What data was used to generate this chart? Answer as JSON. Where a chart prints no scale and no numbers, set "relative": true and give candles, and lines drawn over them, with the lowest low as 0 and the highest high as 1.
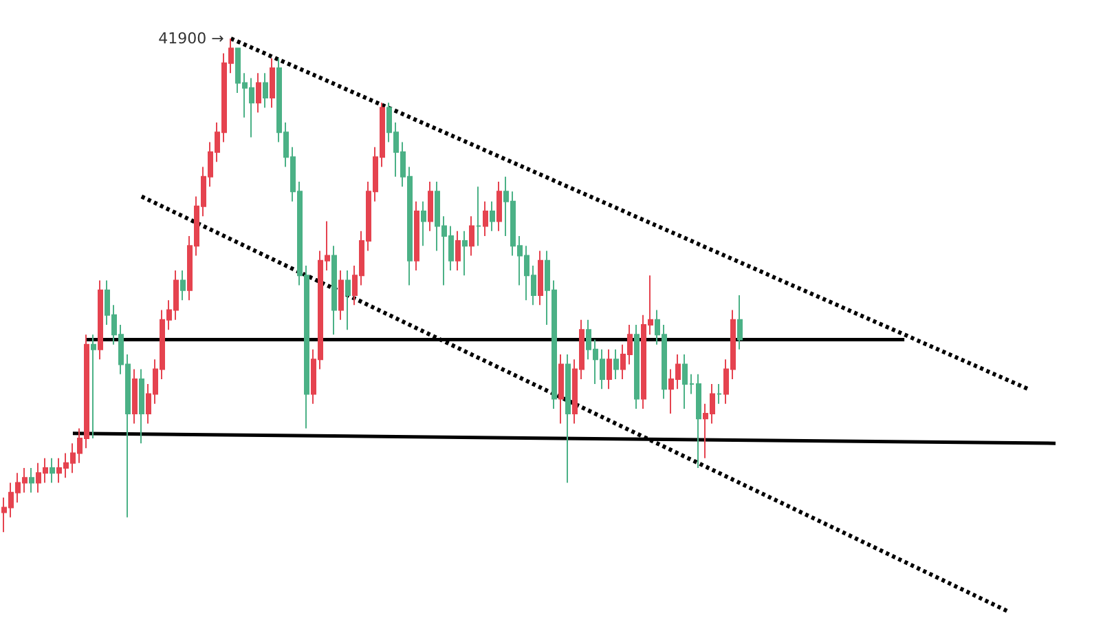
{
  "chart_data": {
    "type": "candlestick",
    "relative": true,
    "categories": [
      null,
      null,
      null,
      null,
      null,
      null,
      null,
      null,
      null,
      null,
      null,
      null,
      null,
      null,
      null,
      null,
      null,
      null,
      null,
      null,
      null,
      null,
      null,
      null,
      null,
      null,
      null,
      null,
      null,
      null,
      null,
      null,
      null,
      null,
      null,
      null,
      null,
      null,
      null,
      null,
      null,
      null,
      null,
      null,
      null,
      null,
      null,
      null,
      null,
      null,
      null,
      null,
      null,
      null,
      null,
      null,
      null,
      null,
      null,
      null,
      null,
      null,
      null,
      null,
      null,
      null,
      null,
      null,
      null,
      null,
      null,
      null,
      null,
      null,
      null,
      null,
      null,
      null,
      null,
      null,
      null,
      null,
      null,
      null,
      null,
      null,
      null,
      null,
      null,
      null,
      null,
      null,
      null,
      null,
      null,
      null,
      null,
      null,
      null,
      null,
      null,
      null,
      null,
      null,
      null,
      null,
      null,
      null,
      null,
      null,
      null,
      null,
      null,
      null,
      null,
      null,
      null,
      null,
      null,
      null,
      null,
      null,
      null,
      null,
      null,
      null,
      null,
      null,
      null,
      null,
      null,
      null,
      null,
      null,
      null,
      null,
      null,
      null,
      null,
      null,
      null,
      null,
      null,
      null,
      null,
      null,
      null,
      null,
      null,
      null,
      null,
      null,
      null,
      null
    ],
    "ohlc": [
      [
        0.04,
        0.07,
        0,
        0.05
      ],
      [
        0.05,
        0.1,
        0.03,
        0.08
      ],
      [
        0.08,
        0.12,
        0.06,
        0.1
      ],
      [
        0.1,
        0.13,
        0.08,
        0.11
      ],
      [
        0.11,
        0.13,
        0.08,
        0.1
      ],
      [
        0.1,
        0.14,
        0.08,
        0.12
      ],
      [
        0.12,
        0.15,
        0.1,
        0.13
      ],
      [
        0.13,
        0.15,
        0.1,
        0.12
      ],
      [
        0.12,
        0.15,
        0.1,
        0.13
      ],
      [
        0.13,
        0.16,
        0.11,
        0.14
      ],
      [
        0.14,
        0.18,
        0.12,
        0.16
      ],
      [
        0.16,
        0.21,
        0.14,
        0.19
      ],
      [
        0.19,
        0.4,
        0.17,
        0.38
      ],
      [
        0.38,
        0.4,
        0.19,
        0.37
      ],
      [
        0.37,
        0.51,
        0.35,
        0.49
      ],
      [
        0.49,
        0.51,
        0.42,
        0.44
      ],
      [
        0.44,
        0.46,
        0.38,
        0.4
      ],
      [
        0.4,
        0.42,
        0.32,
        0.34
      ],
      [
        0.34,
        0.36,
        0.03,
        0.24
      ],
      [
        0.24,
        0.33,
        0.22,
        0.31
      ],
      [
        0.31,
        0.33,
        0.18,
        0.24
      ],
      [
        0.24,
        0.3,
        0.22,
        0.28
      ],
      [
        0.28,
        0.35,
        0.26,
        0.33
      ],
      [
        0.33,
        0.45,
        0.31,
        0.43
      ],
      [
        0.43,
        0.47,
        0.41,
        0.45
      ],
      [
        0.45,
        0.53,
        0.43,
        0.51
      ],
      [
        0.51,
        0.53,
        0.47,
        0.49
      ],
      [
        0.49,
        0.6,
        0.47,
        0.58
      ],
      [
        0.58,
        0.68,
        0.56,
        0.66
      ],
      [
        0.66,
        0.74,
        0.64,
        0.72
      ],
      [
        0.72,
        0.79,
        0.7,
        0.77
      ],
      [
        0.77,
        0.83,
        0.75,
        0.81
      ],
      [
        0.81,
        0.97,
        0.79,
        0.95
      ],
      [
        0.95,
        1,
        0.93,
        0.98
      ],
      [
        0.98,
        0.98,
        0.89,
        0.91
      ],
      [
        0.91,
        0.93,
        0.84,
        0.9
      ],
      [
        0.9,
        0.92,
        0.8,
        0.87
      ],
      [
        0.87,
        0.93,
        0.85,
        0.91
      ],
      [
        0.91,
        0.93,
        0.86,
        0.88
      ],
      [
        0.88,
        0.96,
        0.86,
        0.94
      ],
      [
        0.94,
        0.96,
        0.79,
        0.81
      ],
      [
        0.81,
        0.83,
        0.74,
        0.76
      ],
      [
        0.76,
        0.78,
        0.67,
        0.69
      ],
      [
        0.69,
        0.71,
        0.5,
        0.52
      ],
      [
        0.52,
        0.54,
        0.21,
        0.28
      ],
      [
        0.28,
        0.37,
        0.26,
        0.35
      ],
      [
        0.35,
        0.57,
        0.33,
        0.55
      ],
      [
        0.55,
        0.63,
        0.53,
        0.56
      ],
      [
        0.56,
        0.58,
        0.4,
        0.45
      ],
      [
        0.45,
        0.53,
        0.43,
        0.51
      ],
      [
        0.51,
        0.53,
        0.41,
        0.48
      ],
      [
        0.48,
        0.54,
        0.46,
        0.52
      ],
      [
        0.52,
        0.61,
        0.5,
        0.59
      ],
      [
        0.59,
        0.71,
        0.57,
        0.69
      ],
      [
        0.69,
        0.78,
        0.67,
        0.76
      ],
      [
        0.76,
        0.87,
        0.74,
        0.86
      ],
      [
        0.86,
        0.87,
        0.79,
        0.81
      ],
      [
        0.81,
        0.83,
        0.72,
        0.77
      ],
      [
        0.77,
        0.79,
        0.7,
        0.72
      ],
      [
        0.72,
        0.74,
        0.5,
        0.55
      ],
      [
        0.55,
        0.67,
        0.53,
        0.65
      ],
      [
        0.65,
        0.67,
        0.58,
        0.63
      ],
      [
        0.63,
        0.71,
        0.61,
        0.69
      ],
      [
        0.69,
        0.71,
        0.57,
        0.62
      ],
      [
        0.62,
        0.64,
        0.5,
        0.6
      ],
      [
        0.6,
        0.62,
        0.53,
        0.55
      ],
      [
        0.55,
        0.61,
        0.53,
        0.59
      ],
      [
        0.59,
        0.61,
        0.52,
        0.58
      ],
      [
        0.58,
        0.64,
        0.56,
        0.62
      ],
      [
        0.62,
        0.7,
        0.58,
        0.62
      ],
      [
        0.62,
        0.67,
        0.6,
        0.65
      ],
      [
        0.65,
        0.67,
        0.61,
        0.63
      ],
      [
        0.63,
        0.71,
        0.61,
        0.69
      ],
      [
        0.69,
        0.72,
        0.6,
        0.67
      ],
      [
        0.67,
        0.69,
        0.56,
        0.58
      ],
      [
        0.58,
        0.6,
        0.5,
        0.56
      ],
      [
        0.56,
        0.58,
        0.47,
        0.52
      ],
      [
        0.52,
        0.54,
        0.46,
        0.48
      ],
      [
        0.48,
        0.57,
        0.46,
        0.55
      ],
      [
        0.55,
        0.57,
        0.42,
        0.49
      ],
      [
        0.49,
        0.51,
        0.25,
        0.27
      ],
      [
        0.27,
        0.36,
        0.22,
        0.34
      ],
      [
        0.34,
        0.36,
        0.1,
        0.24
      ],
      [
        0.24,
        0.35,
        0.22,
        0.33
      ],
      [
        0.33,
        0.43,
        0.31,
        0.41
      ],
      [
        0.41,
        0.43,
        0.35,
        0.37
      ],
      [
        0.37,
        0.39,
        0.3,
        0.35
      ],
      [
        0.35,
        0.37,
        0.29,
        0.31
      ],
      [
        0.31,
        0.37,
        0.29,
        0.35
      ],
      [
        0.35,
        0.37,
        0.31,
        0.33
      ],
      [
        0.33,
        0.38,
        0.31,
        0.36
      ],
      [
        0.36,
        0.42,
        0.34,
        0.4
      ],
      [
        0.4,
        0.42,
        0.25,
        0.27
      ],
      [
        0.27,
        0.44,
        0.25,
        0.42
      ],
      [
        0.42,
        0.52,
        0.4,
        0.43
      ],
      [
        0.43,
        0.45,
        0.38,
        0.4
      ],
      [
        0.4,
        0.42,
        0.27,
        0.29
      ],
      [
        0.29,
        0.33,
        0.24,
        0.31
      ],
      [
        0.31,
        0.36,
        0.29,
        0.34
      ],
      [
        0.34,
        0.36,
        0.25,
        0.3
      ],
      [
        0.3,
        0.32,
        0.28,
        0.3
      ],
      [
        0.3,
        0.32,
        0.13,
        0.23
      ],
      [
        0.23,
        0.26,
        0.15,
        0.24
      ],
      [
        0.24,
        0.3,
        0.22,
        0.28
      ],
      [
        0.28,
        0.3,
        0.26,
        0.28
      ],
      [
        0.28,
        0.35,
        0.26,
        0.33
      ],
      [
        0.33,
        0.45,
        0.31,
        0.43
      ],
      [
        0.43,
        0.48,
        0.37,
        0.39
      ],
      null,
      null,
      null,
      null,
      null,
      null,
      null,
      null,
      null,
      null,
      null,
      null,
      null,
      null,
      null,
      null,
      null,
      null,
      null,
      null,
      null,
      null,
      null,
      null,
      null,
      null,
      null,
      null,
      null,
      null,
      null,
      null,
      null,
      null,
      null,
      null,
      null,
      null,
      null,
      null,
      null,
      null,
      null,
      null,
      null,
      null
    ],
    "colors": [
      "#e5434f",
      "#e5434f",
      "#e5434f",
      "#e5434f",
      "#4bb186",
      "#e5434f",
      "#e5434f",
      "#4bb186",
      "#e5434f",
      "#e5434f",
      "#e5434f",
      "#e5434f",
      "#e5434f",
      "#4bb186",
      "#e5434f",
      "#4bb186",
      "#4bb186",
      "#4bb186",
      "#4bb186",
      "#e5434f",
      "#4bb186",
      "#e5434f",
      "#e5434f",
      "#e5434f",
      "#e5434f",
      "#e5434f",
      "#4bb186",
      "#e5434f",
      "#e5434f",
      "#e5434f",
      "#e5434f",
      "#e5434f",
      "#e5434f",
      "#e5434f",
      "#4bb186",
      "#4bb186",
      "#4bb186",
      "#e5434f",
      "#4bb186",
      "#e5434f",
      "#4bb186",
      "#4bb186",
      "#4bb186",
      "#4bb186",
      "#4bb186",
      "#e5434f",
      "#e5434f",
      "#e5434f",
      "#4bb186",
      "#e5434f",
      "#4bb186",
      "#e5434f",
      "#e5434f",
      "#e5434f",
      "#e5434f",
      "#e5434f",
      "#4bb186",
      "#4bb186",
      "#4bb186",
      "#4bb186",
      "#e5434f",
      "#4bb186",
      "#e5434f",
      "#4bb186",
      "#4bb186",
      "#4bb186",
      "#e5434f",
      "#4bb186",
      "#e5434f",
      "#4bb186",
      "#e5434f",
      "#4bb186",
      "#e5434f",
      "#4bb186",
      "#4bb186",
      "#4bb186",
      "#4bb186",
      "#4bb186",
      "#e5434f",
      "#4bb186",
      "#4bb186",
      "#e5434f",
      "#4bb186",
      "#e5434f",
      "#e5434f",
      "#4bb186",
      "#4bb186",
      "#4bb186",
      "#e5434f",
      "#4bb186",
      "#e5434f",
      "#e5434f",
      "#4bb186",
      "#e5434f",
      "#e5434f",
      "#4bb186",
      "#4bb186",
      "#e5434f",
      "#e5434f",
      "#4bb186",
      "#4bb186",
      "#4bb186",
      "#e5434f",
      "#e5434f",
      "#4bb186",
      "#e5434f",
      "#e5434f",
      "#4bb186",
      null,
      null,
      null,
      null,
      null,
      null,
      null,
      null,
      null,
      null,
      null,
      null,
      null,
      null,
      null,
      null,
      null,
      null,
      null,
      null,
      null,
      null,
      null,
      null,
      null,
      null,
      null,
      null,
      null,
      null,
      null,
      null,
      null,
      null,
      null,
      null,
      null,
      null,
      null,
      null,
      null,
      null,
      null,
      null,
      null,
      null
    ],
    "series": [
      {
        "type": "line",
        "color": "#000000",
        "line_style": "dotted",
        "values": [
          null,
          null,
          null,
          null,
          null,
          null,
          null,
          null,
          null,
          null,
          null,
          null,
          null,
          null,
          null,
          null,
          null,
          null,
          null,
          null,
          null,
          null,
          null,
          null,
          null,
          null,
          null,
          null,
          null,
          null,
          null,
          null,
          null,
          1,
          null,
          null,
          null,
          null,
          null,
          null,
          null,
          null,
          null,
          null,
          null,
          null,
          null,
          null,
          null,
          null,
          null,
          null,
          null,
          null,
          null,
          null,
          null,
          null,
          null,
          null,
          null,
          null,
          null,
          null,
          null,
          null,
          null,
          null,
          null,
          null,
          null,
          null,
          null,
          null,
          null,
          null,
          null,
          null,
          null,
          null,
          null,
          null,
          null,
          null,
          null,
          null,
          null,
          null,
          null,
          null,
          null,
          null,
          null,
          null,
          null,
          null,
          null,
          null,
          null,
          null,
          null,
          null,
          null,
          null,
          null,
          null,
          null,
          null,
          null,
          null,
          null,
          null,
          null,
          null,
          null,
          null,
          null,
          null,
          null,
          null,
          null,
          null,
          null,
          null,
          null,
          null,
          null,
          null,
          null,
          null,
          null,
          null,
          null,
          null,
          null,
          null,
          null,
          null,
          null,
          null,
          null,
          null,
          null,
          null,
          null,
          null,
          null,
          null,
          null,
          0.29,
          null,
          null,
          null,
          null
        ]
      },
      {
        "type": "line",
        "color": "#000000",
        "line_style": "dotted",
        "values": [
          null,
          null,
          null,
          null,
          null,
          null,
          null,
          null,
          null,
          null,
          null,
          null,
          null,
          null,
          null,
          null,
          null,
          null,
          null,
          null,
          0.68,
          null,
          null,
          null,
          null,
          null,
          null,
          null,
          null,
          null,
          null,
          null,
          null,
          null,
          null,
          null,
          null,
          null,
          null,
          null,
          null,
          null,
          null,
          null,
          null,
          null,
          null,
          null,
          null,
          null,
          null,
          null,
          null,
          null,
          null,
          null,
          null,
          null,
          null,
          null,
          null,
          null,
          null,
          null,
          null,
          null,
          null,
          null,
          null,
          null,
          null,
          null,
          null,
          null,
          null,
          null,
          null,
          null,
          null,
          null,
          null,
          null,
          null,
          null,
          null,
          null,
          null,
          null,
          null,
          null,
          null,
          null,
          null,
          null,
          null,
          null,
          null,
          null,
          null,
          null,
          null,
          null,
          null,
          null,
          null,
          null,
          null,
          null,
          null,
          null,
          null,
          null,
          null,
          null,
          null,
          null,
          null,
          null,
          null,
          null,
          null,
          null,
          null,
          null,
          null,
          null,
          null,
          null,
          null,
          null,
          null,
          null,
          null,
          null,
          null,
          null,
          null,
          null,
          null,
          null,
          null,
          null,
          null,
          null,
          null,
          null,
          -0.16,
          null,
          null,
          null,
          null,
          null,
          null,
          null
        ]
      },
      {
        "type": "line",
        "color": "#000000",
        "line_style": "solid",
        "values": [
          null,
          null,
          null,
          null,
          null,
          null,
          null,
          null,
          null,
          null,
          null,
          null,
          0.39,
          null,
          null,
          null,
          null,
          null,
          null,
          null,
          null,
          null,
          null,
          null,
          null,
          null,
          null,
          null,
          null,
          null,
          null,
          null,
          null,
          null,
          null,
          null,
          null,
          null,
          null,
          null,
          null,
          null,
          null,
          null,
          null,
          null,
          null,
          null,
          null,
          null,
          null,
          null,
          null,
          null,
          null,
          null,
          null,
          null,
          null,
          null,
          null,
          null,
          null,
          null,
          null,
          null,
          null,
          null,
          null,
          null,
          null,
          null,
          null,
          null,
          null,
          null,
          null,
          null,
          null,
          null,
          null,
          null,
          null,
          null,
          null,
          null,
          null,
          null,
          null,
          null,
          null,
          null,
          null,
          null,
          null,
          null,
          null,
          null,
          null,
          null,
          null,
          null,
          null,
          null,
          null,
          null,
          null,
          null,
          null,
          null,
          null,
          null,
          null,
          null,
          null,
          null,
          null,
          null,
          null,
          null,
          null,
          null,
          null,
          null,
          null,
          null,
          null,
          null,
          null,
          null,
          null,
          0.39,
          null,
          null,
          null,
          null,
          null,
          null,
          null,
          null,
          null,
          null,
          null,
          null,
          null,
          null,
          null,
          null,
          null,
          null,
          null,
          null,
          null,
          null
        ]
      },
      {
        "type": "line",
        "color": "#000000",
        "line_style": "solid",
        "values": [
          null,
          null,
          null,
          null,
          null,
          null,
          null,
          null,
          null,
          null,
          0.2,
          null,
          null,
          null,
          null,
          null,
          null,
          null,
          null,
          null,
          null,
          null,
          null,
          null,
          null,
          null,
          null,
          null,
          null,
          null,
          null,
          null,
          null,
          null,
          null,
          null,
          null,
          null,
          null,
          null,
          null,
          null,
          null,
          null,
          null,
          null,
          null,
          null,
          null,
          null,
          null,
          null,
          null,
          null,
          null,
          null,
          null,
          null,
          null,
          null,
          null,
          null,
          null,
          null,
          null,
          null,
          null,
          null,
          null,
          null,
          null,
          null,
          null,
          null,
          null,
          null,
          null,
          null,
          null,
          null,
          null,
          null,
          null,
          null,
          null,
          null,
          null,
          null,
          null,
          null,
          null,
          null,
          null,
          null,
          null,
          null,
          null,
          null,
          null,
          null,
          null,
          null,
          null,
          null,
          null,
          null,
          null,
          null,
          null,
          null,
          null,
          null,
          null,
          null,
          null,
          null,
          null,
          null,
          null,
          null,
          null,
          null,
          null,
          null,
          null,
          null,
          null,
          null,
          null,
          null,
          null,
          null,
          null,
          null,
          null,
          null,
          null,
          null,
          null,
          null,
          null,
          null,
          null,
          null,
          null,
          null,
          null,
          null,
          null,
          null,
          null,
          null,
          null,
          0.18
        ]
      }
    ],
    "annotations": [
      "41900 →"
    ]
  }
}
